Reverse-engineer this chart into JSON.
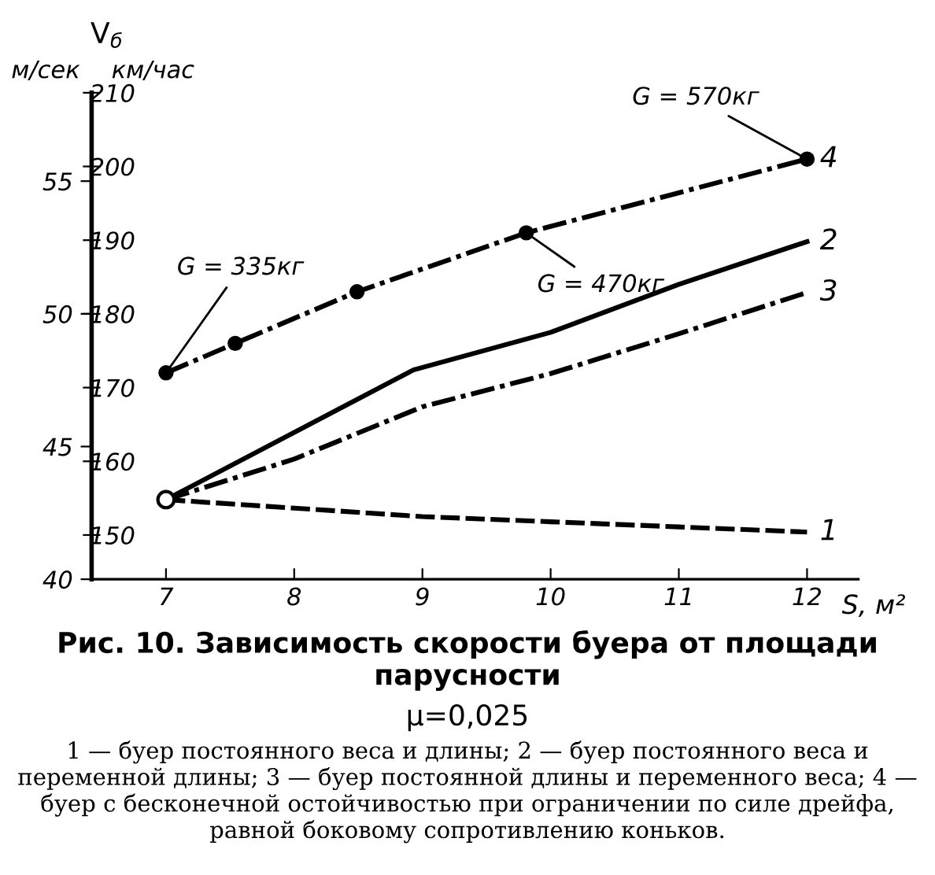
{
  "chart_data": {
    "type": "line",
    "title": "Рис. 10. Зависимость скорости буера от площади парусности",
    "subtitle": "μ=0,025",
    "xlabel": "S, м²",
    "ylabel": "км/час",
    "y2label": "м/сек",
    "xlim": [
      6.42,
      12.4
    ],
    "xticks": [
      7,
      8,
      9,
      10,
      11,
      12
    ],
    "ylim": [
      144,
      210
    ],
    "yticks": [
      150,
      160,
      170,
      180,
      190,
      200,
      210
    ],
    "y2lim": [
      40,
      58.33
    ],
    "y2ticks": [
      40,
      45,
      50,
      55
    ],
    "grid": false,
    "series": [
      {
        "name": "1",
        "color": "#000000",
        "line_style": "dashed",
        "marker": "none",
        "x": [
          7,
          9,
          10,
          11,
          12
        ],
        "values": [
          154.8,
          152.5,
          151.8,
          151.1,
          150.4
        ]
      },
      {
        "name": "2",
        "color": "#000000",
        "line_style": "solid",
        "marker": "none",
        "x": [
          7,
          8.93,
          10,
          11,
          12
        ],
        "values": [
          154.8,
          172.4,
          177.5,
          184,
          189.8
        ]
      },
      {
        "name": "3",
        "color": "#000000",
        "line_style": "dashdot",
        "marker": "none",
        "x": [
          7,
          8,
          9,
          10,
          11,
          12
        ],
        "values": [
          154.8,
          160.3,
          167.4,
          171.9,
          177.3,
          182.9
        ]
      },
      {
        "name": "4",
        "color": "#000000",
        "line_style": "dashdot",
        "marker": "circle",
        "x": [
          7,
          7.54,
          8.49,
          9.81,
          12
        ],
        "values": [
          172,
          176,
          183,
          191,
          201
        ]
      },
      {
        "type": "scatter",
        "color": "#000000",
        "marker": "circle",
        "x": [
          7
        ],
        "values": [
          154.8
        ]
      }
    ],
    "annotations": [
      {
        "text": "G = 335кг",
        "x": 7,
        "y": 172
      },
      {
        "text": "G = 470кг",
        "x": 9.81,
        "y": 191
      },
      {
        "text": "G = 570кг",
        "x": 12,
        "y": 201
      },
      "V$_{б}$",
      "1 — буер постоянного веса и длины; 2 — буер постоянного веса и переменной длины; 3 — буер постоянной длины и переменного веса; 4 — буер с бесконечной остойчивостью при ограничении по силе дрейфа, равной боковому сопротивлению коньков."
    ]
  }
}
